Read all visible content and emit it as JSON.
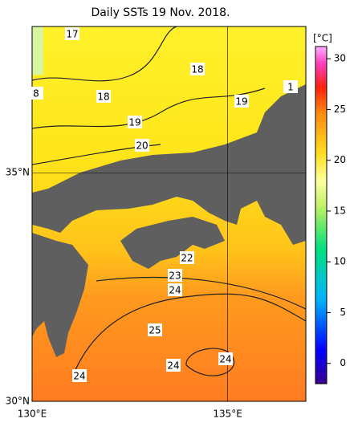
{
  "title": "Daily SSTs 19 Nov. 2018.",
  "map": {
    "xlim": [
      130,
      137
    ],
    "ylim": [
      30,
      38.2
    ],
    "xticks": [
      {
        "value": 130,
        "label": "130°E"
      },
      {
        "value": 135,
        "label": "135°E"
      }
    ],
    "yticks": [
      {
        "value": 30,
        "label": "30°N"
      },
      {
        "value": 35,
        "label": "35°N"
      }
    ],
    "contour_labels": [
      "17",
      "8",
      "18",
      "18",
      "19",
      "1",
      "19",
      "20",
      "22",
      "23",
      "24",
      "25",
      "24",
      "24",
      "24"
    ]
  },
  "colorbar": {
    "unit": "[°C]",
    "lim": [
      -2,
      31.2
    ],
    "ticks": [
      0,
      5,
      10,
      15,
      20,
      25,
      30
    ]
  }
}
